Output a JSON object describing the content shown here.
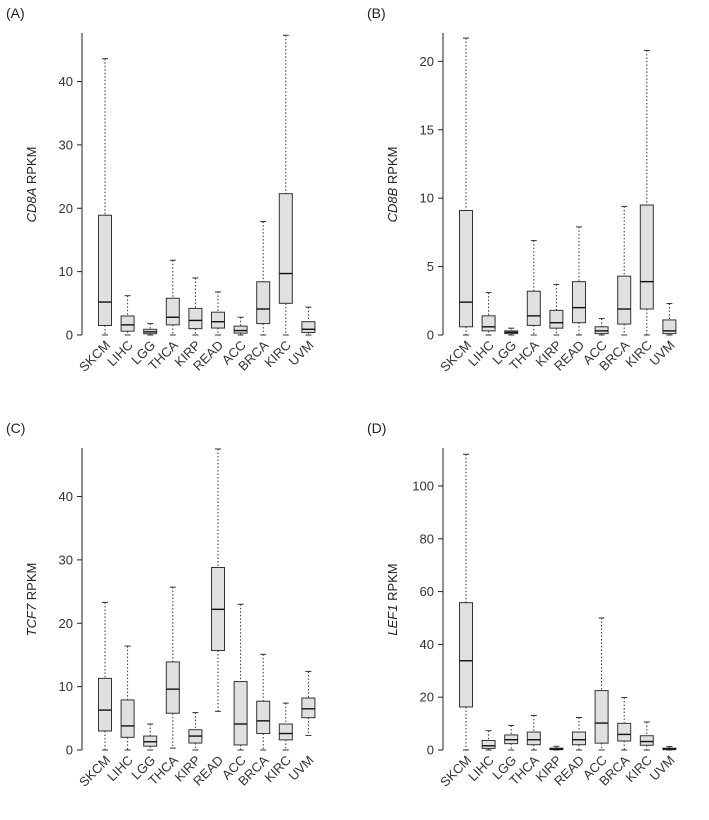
{
  "chart_data": [
    {
      "type": "box",
      "panel_label": "(A)",
      "gene": "CD8A",
      "ylabel_suffix": " RPKM",
      "ylim": [
        0,
        47.5
      ],
      "yticks": [
        0,
        10,
        20,
        30,
        40
      ],
      "categories": [
        "SKCM",
        "LIHC",
        "LGG",
        "THCA",
        "KIRP",
        "READ",
        "ACC",
        "BRCA",
        "KIRC",
        "UVM"
      ],
      "stats": [
        {
          "min": 0.0,
          "q1": 1.5,
          "median": 5.2,
          "q3": 18.9,
          "max": 43.6
        },
        {
          "min": 0.0,
          "q1": 0.6,
          "median": 1.6,
          "q3": 3.0,
          "max": 6.2
        },
        {
          "min": 0.0,
          "q1": 0.2,
          "median": 0.5,
          "q3": 0.9,
          "max": 1.8
        },
        {
          "min": 0.0,
          "q1": 1.6,
          "median": 2.8,
          "q3": 5.8,
          "max": 11.8
        },
        {
          "min": 0.0,
          "q1": 1.0,
          "median": 2.3,
          "q3": 4.2,
          "max": 9.0
        },
        {
          "min": 0.0,
          "q1": 1.1,
          "median": 2.1,
          "q3": 3.6,
          "max": 6.8
        },
        {
          "min": 0.0,
          "q1": 0.3,
          "median": 0.7,
          "q3": 1.4,
          "max": 2.8
        },
        {
          "min": 0.0,
          "q1": 1.8,
          "median": 4.1,
          "q3": 8.4,
          "max": 17.9
        },
        {
          "min": 0.0,
          "q1": 5.0,
          "median": 9.7,
          "q3": 22.3,
          "max": 47.3
        },
        {
          "min": 0.0,
          "q1": 0.4,
          "median": 0.9,
          "q3": 2.1,
          "max": 4.4
        }
      ]
    },
    {
      "type": "box",
      "panel_label": "(B)",
      "gene": "CD8B",
      "ylabel_suffix": " RPKM",
      "ylim": [
        0,
        22
      ],
      "yticks": [
        0,
        5,
        10,
        15,
        20
      ],
      "categories": [
        "SKCM",
        "LIHC",
        "LGG",
        "THCA",
        "KIRP",
        "READ",
        "ACC",
        "BRCA",
        "KIRC",
        "UVM"
      ],
      "stats": [
        {
          "min": 0.0,
          "q1": 0.6,
          "median": 2.4,
          "q3": 9.1,
          "max": 21.7
        },
        {
          "min": 0.0,
          "q1": 0.3,
          "median": 0.6,
          "q3": 1.4,
          "max": 3.1
        },
        {
          "min": 0.0,
          "q1": 0.1,
          "median": 0.2,
          "q3": 0.3,
          "max": 0.5
        },
        {
          "min": 0.0,
          "q1": 0.7,
          "median": 1.4,
          "q3": 3.2,
          "max": 6.9
        },
        {
          "min": 0.0,
          "q1": 0.5,
          "median": 0.9,
          "q3": 1.8,
          "max": 3.7
        },
        {
          "min": 0.0,
          "q1": 0.9,
          "median": 2.0,
          "q3": 3.9,
          "max": 7.9
        },
        {
          "min": 0.0,
          "q1": 0.1,
          "median": 0.3,
          "q3": 0.6,
          "max": 1.2
        },
        {
          "min": 0.0,
          "q1": 0.8,
          "median": 1.9,
          "q3": 4.3,
          "max": 9.4
        },
        {
          "min": 0.0,
          "q1": 1.9,
          "median": 3.9,
          "q3": 9.5,
          "max": 20.8
        },
        {
          "min": 0.0,
          "q1": 0.1,
          "median": 0.3,
          "q3": 1.1,
          "max": 2.3
        }
      ]
    },
    {
      "type": "box",
      "panel_label": "(C)",
      "gene": "TCF7",
      "ylabel_suffix": " RPKM",
      "ylim": [
        0,
        47.5
      ],
      "yticks": [
        0,
        10,
        20,
        30,
        40
      ],
      "categories": [
        "SKCM",
        "LIHC",
        "LGG",
        "THCA",
        "KIRP",
        "READ",
        "ACC",
        "BRCA",
        "KIRC",
        "UVM"
      ],
      "stats": [
        {
          "min": 0.0,
          "q1": 3.0,
          "median": 6.3,
          "q3": 11.3,
          "max": 23.3
        },
        {
          "min": 0.0,
          "q1": 2.0,
          "median": 3.8,
          "q3": 7.9,
          "max": 16.4
        },
        {
          "min": 0.0,
          "q1": 0.6,
          "median": 1.3,
          "q3": 2.2,
          "max": 4.1
        },
        {
          "min": 0.3,
          "q1": 5.8,
          "median": 9.6,
          "q3": 13.9,
          "max": 25.7
        },
        {
          "min": 0.0,
          "q1": 1.1,
          "median": 2.2,
          "q3": 3.2,
          "max": 5.9
        },
        {
          "min": 6.1,
          "q1": 15.7,
          "median": 22.2,
          "q3": 28.8,
          "max": 47.5
        },
        {
          "min": 0.0,
          "q1": 0.8,
          "median": 4.1,
          "q3": 10.8,
          "max": 23.0
        },
        {
          "min": 0.0,
          "q1": 2.6,
          "median": 4.6,
          "q3": 7.7,
          "max": 15.1
        },
        {
          "min": 0.0,
          "q1": 1.6,
          "median": 2.6,
          "q3": 4.1,
          "max": 7.4
        },
        {
          "min": 2.3,
          "q1": 5.1,
          "median": 6.5,
          "q3": 8.2,
          "max": 12.4
        }
      ]
    },
    {
      "type": "box",
      "panel_label": "(D)",
      "gene": "LEF1",
      "ylabel_suffix": " RPKM",
      "ylim": [
        0,
        114
      ],
      "yticks": [
        0,
        20,
        40,
        60,
        80,
        100
      ],
      "categories": [
        "SKCM",
        "LIHC",
        "LGG",
        "THCA",
        "KIRP",
        "READ",
        "ACC",
        "BRCA",
        "KIRC",
        "UVM"
      ],
      "stats": [
        {
          "min": 0.0,
          "q1": 16.3,
          "median": 33.8,
          "q3": 55.8,
          "max": 112.0
        },
        {
          "min": 0.0,
          "q1": 0.6,
          "median": 1.6,
          "q3": 3.6,
          "max": 7.3
        },
        {
          "min": 0.0,
          "q1": 2.4,
          "median": 3.9,
          "q3": 5.7,
          "max": 9.3
        },
        {
          "min": 0.0,
          "q1": 2.0,
          "median": 3.9,
          "q3": 6.8,
          "max": 13.1
        },
        {
          "min": 0.0,
          "q1": 0.2,
          "median": 0.4,
          "q3": 0.7,
          "max": 1.4
        },
        {
          "min": 0.0,
          "q1": 2.0,
          "median": 3.9,
          "q3": 6.8,
          "max": 12.3
        },
        {
          "min": 0.0,
          "q1": 2.6,
          "median": 10.2,
          "q3": 22.5,
          "max": 50.0
        },
        {
          "min": 0.0,
          "q1": 3.4,
          "median": 5.9,
          "q3": 10.1,
          "max": 19.9
        },
        {
          "min": 0.0,
          "q1": 1.8,
          "median": 3.2,
          "q3": 5.4,
          "max": 10.6
        },
        {
          "min": 0.0,
          "q1": 0.2,
          "median": 0.4,
          "q3": 0.7,
          "max": 1.3
        }
      ]
    }
  ]
}
